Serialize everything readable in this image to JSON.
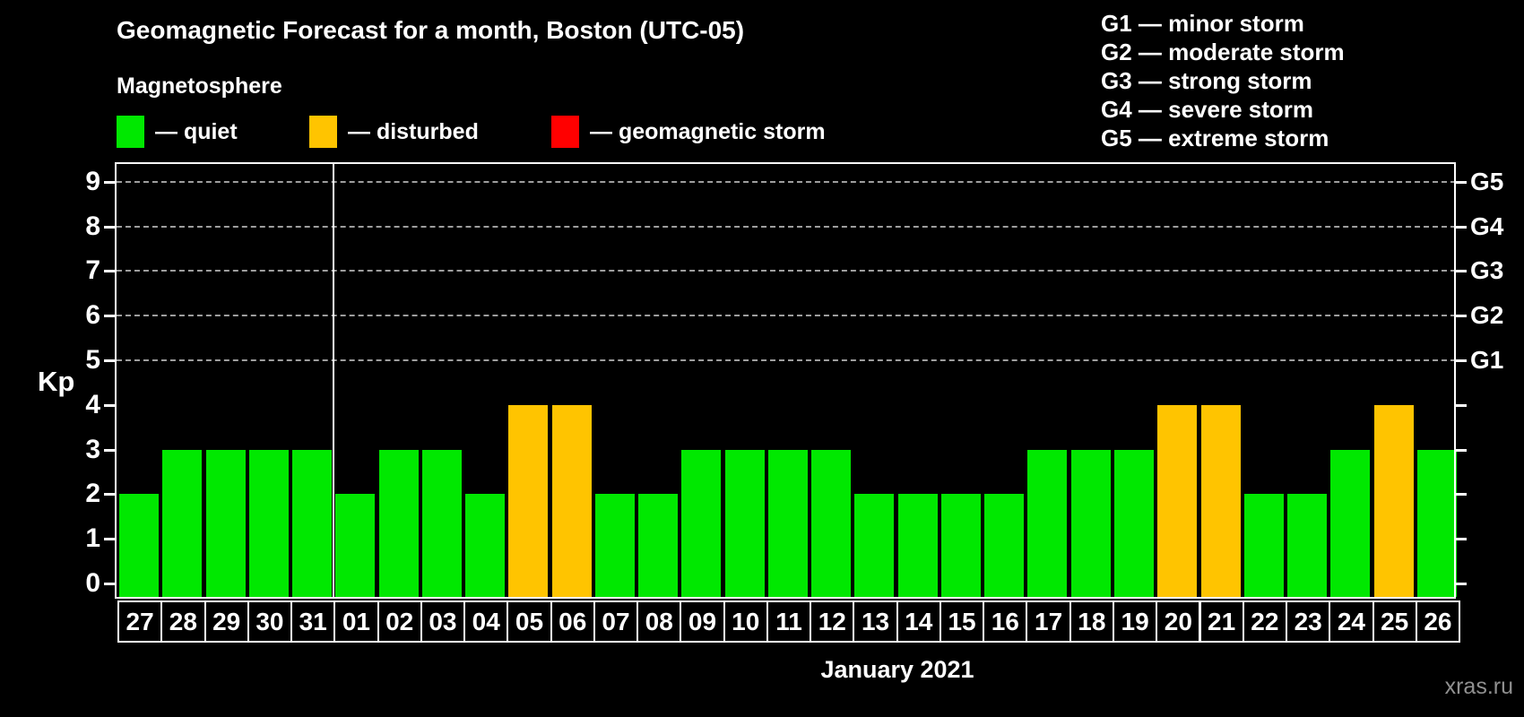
{
  "header": {
    "title": "Geomagnetic Forecast for a month, Boston (UTC-05)"
  },
  "legend": {
    "title": "Magnetosphere",
    "items": [
      {
        "key": "quiet",
        "label": "— quiet",
        "color": "#00e800"
      },
      {
        "key": "disturbed",
        "label": "— disturbed",
        "color": "#ffc400"
      },
      {
        "key": "storm",
        "label": "— geomagnetic storm",
        "color": "#ff0000"
      }
    ]
  },
  "g_legend": {
    "items": [
      "G1 — minor storm",
      "G2 — moderate storm",
      "G3 — strong storm",
      "G4 — severe storm",
      "G5 — extreme storm"
    ]
  },
  "axes": {
    "y_label": "Kp",
    "y_ticks": [
      0,
      1,
      2,
      3,
      4,
      5,
      6,
      7,
      8,
      9
    ],
    "g_ticks": [
      {
        "label": "G1",
        "kp": 5
      },
      {
        "label": "G2",
        "kp": 6
      },
      {
        "label": "G3",
        "kp": 7
      },
      {
        "label": "G4",
        "kp": 8
      },
      {
        "label": "G5",
        "kp": 9
      }
    ],
    "month_label": "January 2021"
  },
  "watermark": "xras.ru",
  "chart_data": {
    "type": "bar",
    "title": "Geomagnetic Forecast for a month, Boston (UTC-05)",
    "xlabel": "January 2021",
    "ylabel": "Kp",
    "ylim": [
      0,
      9
    ],
    "grid": "dashed horizontal at Kp 5-9 only",
    "legend_position": "top",
    "categories": [
      "27",
      "28",
      "29",
      "30",
      "31",
      "01",
      "02",
      "03",
      "04",
      "05",
      "06",
      "07",
      "08",
      "09",
      "10",
      "11",
      "12",
      "13",
      "14",
      "15",
      "16",
      "17",
      "18",
      "19",
      "20",
      "21",
      "22",
      "23",
      "24",
      "25",
      "26"
    ],
    "values": [
      2,
      3,
      3,
      3,
      3,
      2,
      3,
      3,
      2,
      4,
      4,
      2,
      2,
      3,
      3,
      3,
      3,
      2,
      2,
      2,
      2,
      3,
      3,
      3,
      4,
      4,
      2,
      2,
      3,
      4,
      3
    ],
    "statuses": [
      "quiet",
      "quiet",
      "quiet",
      "quiet",
      "quiet",
      "quiet",
      "quiet",
      "quiet",
      "quiet",
      "disturbed",
      "disturbed",
      "quiet",
      "quiet",
      "quiet",
      "quiet",
      "quiet",
      "quiet",
      "quiet",
      "quiet",
      "quiet",
      "quiet",
      "quiet",
      "quiet",
      "quiet",
      "disturbed",
      "disturbed",
      "quiet",
      "quiet",
      "quiet",
      "disturbed",
      "quiet"
    ],
    "status_colors": {
      "quiet": "#00e800",
      "disturbed": "#ffc400",
      "storm": "#ff0000"
    },
    "gridlines_at": [
      5,
      6,
      7,
      8,
      9
    ],
    "month_separator_after_index": 4
  }
}
